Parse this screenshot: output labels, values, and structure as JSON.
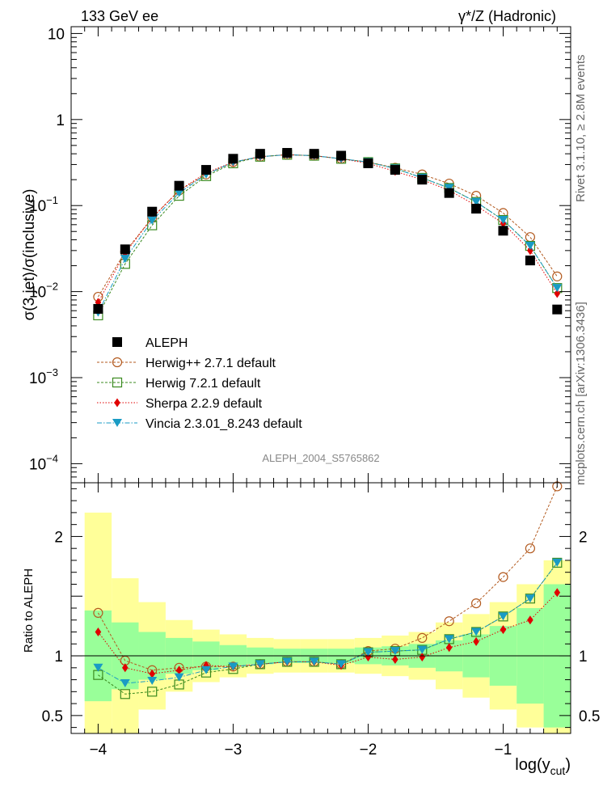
{
  "header": {
    "left": "133 GeV ee",
    "right": "γ*/Z (Hadronic)"
  },
  "side_text": {
    "rivet": "Rivet 3.1.10, ≥ 2.8M events",
    "mcplots": "mcplots.cern.ch [arXiv:1306.3436]"
  },
  "analysis_label": "ALEPH_2004_S5765862",
  "chart_data": {
    "type": "scatter",
    "x": [
      -4.0,
      -3.8,
      -3.6,
      -3.4,
      -3.2,
      -3.0,
      -2.8,
      -2.6,
      -2.4,
      -2.2,
      -2.0,
      -1.8,
      -1.6,
      -1.4,
      -1.2,
      -1.0,
      -0.8,
      -0.6
    ],
    "main": {
      "ylabel": "σ(3 jet)/σ(inclusive)",
      "yscale": "log",
      "ylim": [
        6e-05,
        12
      ],
      "yticks": [
        {
          "v": 10,
          "label": "10"
        },
        {
          "v": 1,
          "label": "1"
        },
        {
          "v": 0.1,
          "label": "10",
          "exp": "−1"
        },
        {
          "v": 0.01,
          "label": "10",
          "exp": "−2"
        },
        {
          "v": 0.001,
          "label": "10",
          "exp": "−3"
        },
        {
          "v": 0.0001,
          "label": "10",
          "exp": "−4"
        }
      ]
    },
    "ratio": {
      "ylabel": "Ratio to ALEPH",
      "ylim": [
        0.35,
        2.45
      ],
      "yticks": [
        {
          "v": 0.5,
          "label": "0.5"
        },
        {
          "v": 1,
          "label": "1"
        },
        {
          "v": 2,
          "label": "2"
        }
      ],
      "band_inner": [
        0.38,
        0.28,
        0.2,
        0.15,
        0.12,
        0.09,
        0.07,
        0.06,
        0.06,
        0.06,
        0.07,
        0.08,
        0.1,
        0.13,
        0.18,
        0.25,
        0.4,
        0.6
      ],
      "band_outer": [
        1.2,
        0.65,
        0.45,
        0.3,
        0.22,
        0.18,
        0.15,
        0.14,
        0.14,
        0.14,
        0.15,
        0.17,
        0.2,
        0.28,
        0.35,
        0.45,
        0.6,
        0.8
      ]
    },
    "xlabel": "log(y",
    "xlabel_sub": "cut",
    "xlabel_close": ")",
    "xlim": [
      -4.2,
      -0.5
    ],
    "xticks": [
      -4,
      -3,
      -2,
      -1
    ],
    "xtick_labels": [
      "−4",
      "−3",
      "−2",
      "−1"
    ],
    "data": {
      "name": "ALEPH",
      "color": "#000000",
      "y": [
        0.0063,
        0.031,
        0.085,
        0.17,
        0.26,
        0.35,
        0.4,
        0.41,
        0.4,
        0.38,
        0.31,
        0.26,
        0.2,
        0.14,
        0.092,
        0.051,
        0.023,
        0.0062
      ]
    },
    "series": [
      {
        "name": "Herwig++ 2.7.1 default",
        "color": "#b35a1f",
        "marker": "circle",
        "dash": "3,2",
        "y": [
          0.0087,
          0.029,
          0.072,
          0.15,
          0.23,
          0.32,
          0.37,
          0.39,
          0.38,
          0.35,
          0.32,
          0.275,
          0.23,
          0.18,
          0.13,
          0.082,
          0.043,
          0.015
        ]
      },
      {
        "name": "Herwig 7.2.1 default",
        "color": "#3a8a1f",
        "marker": "square",
        "dash": "3,2",
        "y": [
          0.0053,
          0.021,
          0.059,
          0.13,
          0.22,
          0.31,
          0.37,
          0.39,
          0.38,
          0.35,
          0.32,
          0.27,
          0.21,
          0.16,
          0.11,
          0.068,
          0.034,
          0.011
        ]
      },
      {
        "name": "Sherpa 2.2.9 default",
        "color": "#e00000",
        "marker": "diamond",
        "dash": "1.5,2",
        "y": [
          0.0075,
          0.028,
          0.072,
          0.15,
          0.24,
          0.32,
          0.37,
          0.39,
          0.38,
          0.35,
          0.31,
          0.25,
          0.2,
          0.15,
          0.1,
          0.062,
          0.03,
          0.0095
        ]
      },
      {
        "name": "Vincia 2.3.01_8.243 default",
        "color": "#1a9bc4",
        "marker": "triangle",
        "dash": "6,2,1.5,2",
        "y": [
          0.0057,
          0.024,
          0.067,
          0.14,
          0.23,
          0.32,
          0.37,
          0.39,
          0.38,
          0.35,
          0.32,
          0.27,
          0.21,
          0.16,
          0.11,
          0.068,
          0.034,
          0.011
        ]
      }
    ],
    "legend_placement": "lower-left",
    "ratio_values": [
      [
        1.36,
        0.96,
        0.88,
        0.9,
        0.91,
        0.91,
        0.93,
        0.95,
        0.95,
        0.93,
        1.04,
        1.06,
        1.15,
        1.29,
        1.44,
        1.66,
        1.9,
        2.42
      ],
      [
        0.84,
        0.68,
        0.7,
        0.76,
        0.86,
        0.89,
        0.93,
        0.95,
        0.95,
        0.93,
        1.03,
        1.04,
        1.05,
        1.14,
        1.2,
        1.33,
        1.48,
        1.78
      ],
      [
        1.2,
        0.9,
        0.85,
        0.88,
        0.92,
        0.91,
        0.93,
        0.95,
        0.95,
        0.92,
        0.99,
        0.97,
        0.99,
        1.07,
        1.12,
        1.22,
        1.3,
        1.53
      ],
      [
        0.9,
        0.77,
        0.79,
        0.82,
        0.88,
        0.91,
        0.93,
        0.95,
        0.95,
        0.93,
        1.03,
        1.04,
        1.05,
        1.14,
        1.2,
        1.33,
        1.48,
        1.78
      ]
    ]
  }
}
